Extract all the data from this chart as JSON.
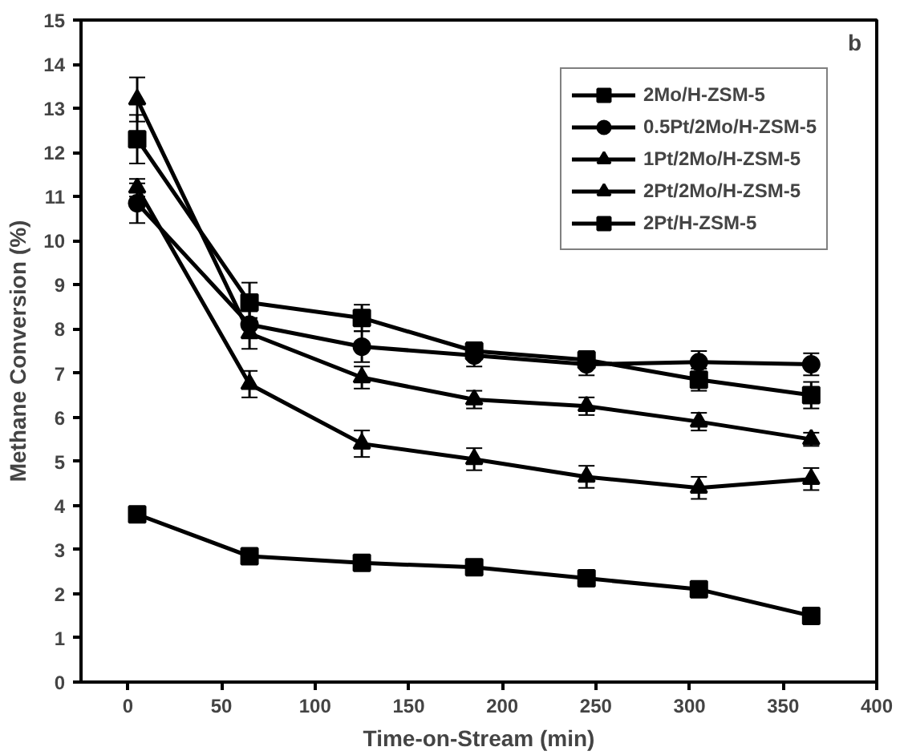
{
  "chart_data": {
    "type": "line",
    "xlabel": "Time-on-Stream (min)",
    "ylabel": "Methane Conversion (%)",
    "annotations": [
      "b"
    ],
    "xlim": [
      -25,
      400
    ],
    "xticks": [
      0,
      50,
      100,
      150,
      200,
      250,
      300,
      350,
      400
    ],
    "ylim": [
      0,
      15
    ],
    "yticks": [
      0,
      1,
      2,
      3,
      4,
      5,
      6,
      7,
      8,
      9,
      10,
      11,
      12,
      13,
      14,
      15
    ],
    "grid": false,
    "legend": "top right",
    "line_style": "solid",
    "x": [
      5,
      65,
      125,
      185,
      245,
      305,
      365
    ],
    "series": [
      {
        "name": "2Mo/H-ZSM-5",
        "color": "#000000",
        "marker": "square",
        "values": [
          12.3,
          8.6,
          8.25,
          7.5,
          7.3,
          6.85,
          6.5
        ],
        "errors": [
          0.55,
          0.45,
          0.3,
          0.2,
          0.2,
          0.25,
          0.3
        ]
      },
      {
        "name": "0.5Pt/2Mo/H-ZSM-5",
        "color": "#000000",
        "marker": "circle",
        "values": [
          10.85,
          8.1,
          7.6,
          7.4,
          7.2,
          7.25,
          7.2
        ],
        "errors": [
          0.45,
          0.3,
          0.35,
          0.25,
          0.25,
          0.25,
          0.25
        ]
      },
      {
        "name": "1Pt/2Mo/H-ZSM-5",
        "color": "#000000",
        "marker": "triangle",
        "values": [
          13.2,
          7.9,
          6.9,
          6.4,
          6.25,
          5.9,
          5.5
        ],
        "errors": [
          0.5,
          0.35,
          0.25,
          0.2,
          0.2,
          0.2,
          0.15
        ]
      },
      {
        "name": "2Pt/2Mo/H-ZSM-5",
        "color": "#000000",
        "marker": "triangle",
        "values": [
          11.2,
          6.75,
          5.4,
          5.05,
          4.65,
          4.4,
          4.6
        ],
        "errors": [
          0.2,
          0.3,
          0.3,
          0.25,
          0.25,
          0.25,
          0.25
        ]
      },
      {
        "name": "2Pt/H-ZSM-5",
        "color": "#000000",
        "marker": "square",
        "values": [
          3.8,
          2.85,
          2.7,
          2.6,
          2.35,
          2.1,
          1.5
        ],
        "errors": [
          0.1,
          0.08,
          0.08,
          0.08,
          0.1,
          0.1,
          0.1
        ]
      }
    ]
  }
}
